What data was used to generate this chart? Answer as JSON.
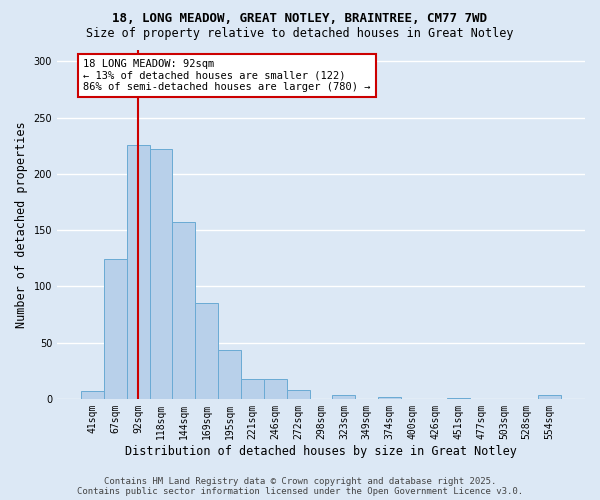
{
  "title_line1": "18, LONG MEADOW, GREAT NOTLEY, BRAINTREE, CM77 7WD",
  "title_line2": "Size of property relative to detached houses in Great Notley",
  "xlabel": "Distribution of detached houses by size in Great Notley",
  "ylabel": "Number of detached properties",
  "categories": [
    "41sqm",
    "67sqm",
    "92sqm",
    "118sqm",
    "144sqm",
    "169sqm",
    "195sqm",
    "221sqm",
    "246sqm",
    "272sqm",
    "298sqm",
    "323sqm",
    "349sqm",
    "374sqm",
    "400sqm",
    "426sqm",
    "451sqm",
    "477sqm",
    "503sqm",
    "528sqm",
    "554sqm"
  ],
  "values": [
    7,
    124,
    226,
    222,
    157,
    85,
    43,
    18,
    18,
    8,
    0,
    3,
    0,
    2,
    0,
    0,
    1,
    0,
    0,
    0,
    3
  ],
  "bar_color": "#b8d0ea",
  "bar_edge_color": "#6aaad4",
  "highlight_x": "92sqm",
  "highlight_line_color": "#cc0000",
  "annotation_text": "18 LONG MEADOW: 92sqm\n← 13% of detached houses are smaller (122)\n86% of semi-detached houses are larger (780) →",
  "annotation_box_color": "#ffffff",
  "annotation_box_edge_color": "#cc0000",
  "ylim": [
    0,
    310
  ],
  "yticks": [
    0,
    50,
    100,
    150,
    200,
    250,
    300
  ],
  "footer_line1": "Contains HM Land Registry data © Crown copyright and database right 2025.",
  "footer_line2": "Contains public sector information licensed under the Open Government Licence v3.0.",
  "background_color": "#dce8f5",
  "plot_background_color": "#dce8f5",
  "grid_color": "#ffffff",
  "title_fontsize": 9,
  "subtitle_fontsize": 8.5,
  "axis_label_fontsize": 8.5,
  "tick_fontsize": 7,
  "annotation_fontsize": 7.5,
  "footer_fontsize": 6.5
}
